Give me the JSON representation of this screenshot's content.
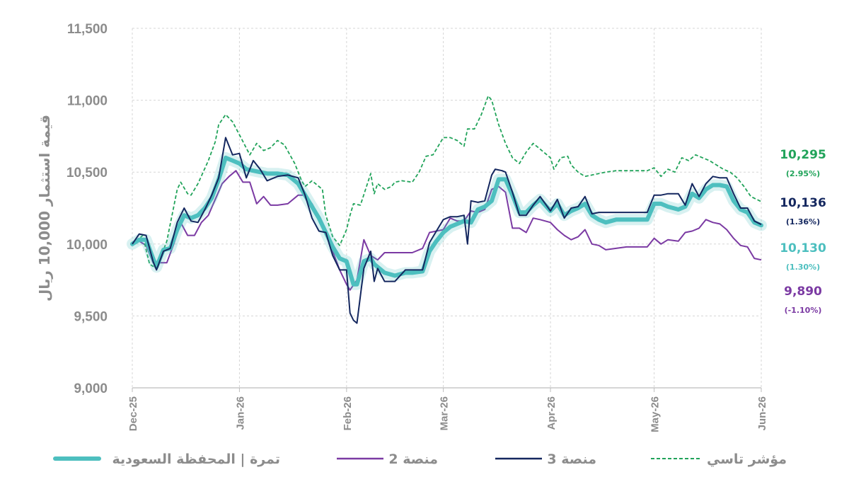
{
  "chart_data": {
    "type": "line",
    "title": "",
    "xlabel": "",
    "ylabel": "قيمة استثمار 10,000 ريال",
    "ylim": [
      9000,
      11500
    ],
    "yticks": [
      9000,
      9500,
      10000,
      10500,
      11000,
      11500
    ],
    "ytick_labels": [
      "9,000",
      "9,500",
      "10,000",
      "10,500",
      "11,000",
      "11,500"
    ],
    "xlim": [
      "2025-12-01",
      "2026-06-01"
    ],
    "xticks": [
      "2025-12-01",
      "2026-01-01",
      "2026-02-01",
      "2026-03-01",
      "2026-04-01",
      "2026-05-01",
      "2026-06-01"
    ],
    "xtick_labels": [
      "Dec-25",
      "Jan-26",
      "Feb-26",
      "Mar-26",
      "Apr-26",
      "May-26",
      "Jun-26"
    ],
    "grid": true,
    "legend_position": "bottom",
    "series": [
      {
        "name": "مؤشر تاسي",
        "color": "#21a35a",
        "style": "dashed",
        "end_value": "10,295",
        "end_change": "(2.95%)",
        "x": [
          "2025-12-01",
          "2025-12-04",
          "2025-12-06",
          "2025-12-08",
          "2025-12-11",
          "2025-12-14",
          "2025-12-15",
          "2025-12-17",
          "2025-12-18",
          "2025-12-20",
          "2025-12-23",
          "2025-12-25",
          "2025-12-26",
          "2025-12-28",
          "2025-12-30",
          "2026-01-01",
          "2026-01-04",
          "2026-01-06",
          "2026-01-08",
          "2026-01-10",
          "2026-01-12",
          "2026-01-14",
          "2026-01-17",
          "2026-01-19",
          "2026-01-20",
          "2026-01-22",
          "2026-01-25",
          "2026-01-26",
          "2026-01-28",
          "2026-01-30",
          "2026-02-01",
          "2026-02-02",
          "2026-02-03",
          "2026-02-05",
          "2026-02-08",
          "2026-02-09",
          "2026-02-10",
          "2026-02-12",
          "2026-02-14",
          "2026-02-15",
          "2026-02-17",
          "2026-02-20",
          "2026-02-22",
          "2026-02-24",
          "2026-02-26",
          "2026-03-01",
          "2026-03-03",
          "2026-03-05",
          "2026-03-07",
          "2026-03-08",
          "2026-03-10",
          "2026-03-12",
          "2026-03-14",
          "2026-03-15",
          "2026-03-17",
          "2026-03-19",
          "2026-03-21",
          "2026-03-23",
          "2026-03-25",
          "2026-03-27",
          "2026-03-29",
          "2026-04-01",
          "2026-04-02",
          "2026-04-04",
          "2026-04-06",
          "2026-04-07",
          "2026-04-09",
          "2026-04-11",
          "2026-04-13",
          "2026-04-15",
          "2026-04-17",
          "2026-04-20",
          "2026-04-23",
          "2026-04-26",
          "2026-04-29",
          "2026-05-01",
          "2026-05-03",
          "2026-05-05",
          "2026-05-07",
          "2026-05-09",
          "2026-05-11",
          "2026-05-13",
          "2026-05-15",
          "2026-05-17",
          "2026-05-19",
          "2026-05-21",
          "2026-05-23",
          "2026-05-25",
          "2026-05-27",
          "2026-05-29",
          "2026-06-01"
        ],
        "values": [
          9990,
          10060,
          9860,
          9830,
          10020,
          10380,
          10430,
          10350,
          10340,
          10420,
          10580,
          10710,
          10830,
          10900,
          10850,
          10760,
          10620,
          10700,
          10650,
          10670,
          10720,
          10690,
          10560,
          10440,
          10400,
          10440,
          10380,
          10200,
          10050,
          9990,
          10100,
          10200,
          10280,
          10270,
          10490,
          10350,
          10420,
          10380,
          10400,
          10430,
          10440,
          10430,
          10500,
          10610,
          10620,
          10740,
          10740,
          10720,
          10680,
          10800,
          10800,
          10900,
          11030,
          11000,
          10830,
          10700,
          10600,
          10560,
          10640,
          10700,
          10660,
          10600,
          10520,
          10600,
          10610,
          10550,
          10500,
          10470,
          10480,
          10490,
          10500,
          10510,
          10510,
          10510,
          10510,
          10530,
          10470,
          10520,
          10500,
          10600,
          10580,
          10620,
          10600,
          10580,
          10550,
          10520,
          10500,
          10460,
          10400,
          10330,
          10295
        ]
      },
      {
        "name": "منصة 3",
        "color": "#14275f",
        "style": "solid",
        "end_value": "10,136",
        "end_change": "(1.36%)",
        "x": [
          "2025-12-01",
          "2025-12-03",
          "2025-12-05",
          "2025-12-07",
          "2025-12-08",
          "2025-12-10",
          "2025-12-12",
          "2025-12-14",
          "2025-12-16",
          "2025-12-18",
          "2025-12-20",
          "2025-12-22",
          "2025-12-24",
          "2025-12-26",
          "2025-12-28",
          "2025-12-30",
          "2026-01-01",
          "2026-01-03",
          "2026-01-05",
          "2026-01-07",
          "2026-01-09",
          "2026-01-12",
          "2026-01-15",
          "2026-01-18",
          "2026-01-20",
          "2026-01-22",
          "2026-01-24",
          "2026-01-26",
          "2026-01-28",
          "2026-01-30",
          "2026-02-01",
          "2026-02-02",
          "2026-02-03",
          "2026-02-04",
          "2026-02-06",
          "2026-02-08",
          "2026-02-09",
          "2026-02-10",
          "2026-02-12",
          "2026-02-15",
          "2026-02-18",
          "2026-02-20",
          "2026-02-23",
          "2026-02-25",
          "2026-02-27",
          "2026-03-01",
          "2026-03-03",
          "2026-03-05",
          "2026-03-07",
          "2026-03-08",
          "2026-03-09",
          "2026-03-11",
          "2026-03-13",
          "2026-03-15",
          "2026-03-16",
          "2026-03-18",
          "2026-03-19",
          "2026-03-21",
          "2026-03-23",
          "2026-03-25",
          "2026-03-27",
          "2026-03-29",
          "2026-04-01",
          "2026-04-03",
          "2026-04-05",
          "2026-04-07",
          "2026-04-09",
          "2026-04-11",
          "2026-04-13",
          "2026-04-15",
          "2026-04-17",
          "2026-04-20",
          "2026-04-23",
          "2026-04-26",
          "2026-04-29",
          "2026-05-01",
          "2026-05-03",
          "2026-05-05",
          "2026-05-08",
          "2026-05-10",
          "2026-05-12",
          "2026-05-14",
          "2026-05-16",
          "2026-05-18",
          "2026-05-20",
          "2026-05-22",
          "2026-05-24",
          "2026-05-26",
          "2026-05-28",
          "2026-05-30",
          "2026-06-01"
        ],
        "values": [
          10000,
          10070,
          10060,
          9880,
          9820,
          9950,
          9970,
          10150,
          10250,
          10160,
          10150,
          10240,
          10340,
          10460,
          10740,
          10620,
          10630,
          10460,
          10580,
          10520,
          10440,
          10470,
          10480,
          10460,
          10340,
          10180,
          10090,
          10080,
          9920,
          9820,
          9820,
          9520,
          9470,
          9450,
          9830,
          9950,
          9740,
          9830,
          9740,
          9740,
          9820,
          9820,
          9820,
          10010,
          10090,
          10170,
          10190,
          10190,
          10200,
          10000,
          10300,
          10290,
          10300,
          10480,
          10520,
          10510,
          10500,
          10360,
          10200,
          10200,
          10270,
          10330,
          10230,
          10310,
          10180,
          10250,
          10260,
          10330,
          10210,
          10220,
          10220,
          10220,
          10220,
          10220,
          10220,
          10340,
          10340,
          10350,
          10350,
          10270,
          10420,
          10330,
          10420,
          10470,
          10460,
          10460,
          10350,
          10250,
          10250,
          10160,
          10136
        ]
      },
      {
        "name": "تمرة | المحفظة السعودية",
        "color": "#4dbfbf",
        "style": "thick",
        "end_value": "10,130",
        "end_change": "(1.30%)",
        "x": [
          "2025-12-01",
          "2025-12-03",
          "2025-12-05",
          "2025-12-07",
          "2025-12-08",
          "2025-12-10",
          "2025-12-12",
          "2025-12-14",
          "2025-12-16",
          "2025-12-18",
          "2025-12-20",
          "2025-12-22",
          "2025-12-24",
          "2025-12-26",
          "2025-12-28",
          "2025-12-30",
          "2026-01-01",
          "2026-01-03",
          "2026-01-05",
          "2026-01-07",
          "2026-01-09",
          "2026-01-12",
          "2026-01-15",
          "2026-01-18",
          "2026-01-20",
          "2026-01-22",
          "2026-01-24",
          "2026-01-26",
          "2026-01-28",
          "2026-01-30",
          "2026-02-01",
          "2026-02-02",
          "2026-02-03",
          "2026-02-04",
          "2026-02-06",
          "2026-02-08",
          "2026-02-09",
          "2026-02-10",
          "2026-02-12",
          "2026-02-15",
          "2026-02-18",
          "2026-02-20",
          "2026-02-23",
          "2026-02-25",
          "2026-02-27",
          "2026-03-01",
          "2026-03-03",
          "2026-03-05",
          "2026-03-07",
          "2026-03-09",
          "2026-03-11",
          "2026-03-13",
          "2026-03-15",
          "2026-03-17",
          "2026-03-19",
          "2026-03-21",
          "2026-03-23",
          "2026-03-25",
          "2026-03-27",
          "2026-03-29",
          "2026-04-01",
          "2026-04-03",
          "2026-04-05",
          "2026-04-07",
          "2026-04-09",
          "2026-04-11",
          "2026-04-13",
          "2026-04-15",
          "2026-04-17",
          "2026-04-20",
          "2026-04-23",
          "2026-04-26",
          "2026-04-29",
          "2026-05-01",
          "2026-05-03",
          "2026-05-05",
          "2026-05-08",
          "2026-05-10",
          "2026-05-12",
          "2026-05-14",
          "2026-05-16",
          "2026-05-18",
          "2026-05-20",
          "2026-05-22",
          "2026-05-24",
          "2026-05-26",
          "2026-05-28",
          "2026-05-30",
          "2026-06-01"
        ],
        "values": [
          10000,
          10030,
          10030,
          9900,
          9840,
          9960,
          9970,
          10100,
          10200,
          10180,
          10200,
          10250,
          10320,
          10450,
          10600,
          10580,
          10560,
          10520,
          10510,
          10500,
          10490,
          10490,
          10480,
          10420,
          10340,
          10260,
          10180,
          10080,
          9980,
          9900,
          9880,
          9800,
          9720,
          9720,
          9880,
          9900,
          9860,
          9840,
          9800,
          9780,
          9800,
          9800,
          9810,
          9950,
          10020,
          10080,
          10120,
          10140,
          10160,
          10150,
          10240,
          10260,
          10300,
          10450,
          10450,
          10340,
          10220,
          10220,
          10270,
          10310,
          10230,
          10280,
          10200,
          10230,
          10250,
          10280,
          10200,
          10170,
          10150,
          10170,
          10170,
          10170,
          10170,
          10280,
          10280,
          10260,
          10240,
          10260,
          10350,
          10320,
          10380,
          10410,
          10410,
          10400,
          10300,
          10240,
          10220,
          10150,
          10130
        ]
      },
      {
        "name": "منصة 2",
        "color": "#7b3aa3",
        "style": "solid",
        "end_value": "9,890",
        "end_change": "(-1.10%)",
        "x": [
          "2025-12-01",
          "2025-12-03",
          "2025-12-05",
          "2025-12-07",
          "2025-12-09",
          "2025-12-11",
          "2025-12-13",
          "2025-12-15",
          "2025-12-17",
          "2025-12-19",
          "2025-12-21",
          "2025-12-23",
          "2025-12-25",
          "2025-12-27",
          "2025-12-29",
          "2025-12-31",
          "2026-01-02",
          "2026-01-04",
          "2026-01-06",
          "2026-01-08",
          "2026-01-10",
          "2026-01-12",
          "2026-01-15",
          "2026-01-18",
          "2026-01-20",
          "2026-01-22",
          "2026-01-24",
          "2026-01-26",
          "2026-01-28",
          "2026-01-30",
          "2026-02-01",
          "2026-02-02",
          "2026-02-04",
          "2026-02-06",
          "2026-02-08",
          "2026-02-10",
          "2026-02-12",
          "2026-02-15",
          "2026-02-18",
          "2026-02-20",
          "2026-02-23",
          "2026-02-25",
          "2026-02-27",
          "2026-03-01",
          "2026-03-03",
          "2026-03-05",
          "2026-03-07",
          "2026-03-09",
          "2026-03-11",
          "2026-03-13",
          "2026-03-15",
          "2026-03-17",
          "2026-03-19",
          "2026-03-21",
          "2026-03-23",
          "2026-03-25",
          "2026-03-27",
          "2026-03-29",
          "2026-04-01",
          "2026-04-03",
          "2026-04-05",
          "2026-04-07",
          "2026-04-09",
          "2026-04-11",
          "2026-04-13",
          "2026-04-15",
          "2026-04-17",
          "2026-04-20",
          "2026-04-23",
          "2026-04-26",
          "2026-04-29",
          "2026-05-01",
          "2026-05-03",
          "2026-05-05",
          "2026-05-08",
          "2026-05-10",
          "2026-05-12",
          "2026-05-14",
          "2026-05-16",
          "2026-05-18",
          "2026-05-20",
          "2026-05-22",
          "2026-05-24",
          "2026-05-26",
          "2026-05-28",
          "2026-05-30",
          "2026-06-01"
        ],
        "values": [
          10000,
          10020,
          9990,
          9870,
          9870,
          9870,
          10000,
          10150,
          10060,
          10060,
          10150,
          10200,
          10310,
          10420,
          10470,
          10510,
          10430,
          10430,
          10280,
          10330,
          10270,
          10270,
          10280,
          10340,
          10340,
          10280,
          10190,
          10080,
          9950,
          9820,
          9720,
          9680,
          9750,
          10030,
          9920,
          9890,
          9940,
          9940,
          9940,
          9940,
          9970,
          10080,
          10090,
          10100,
          10180,
          10160,
          10160,
          10230,
          10220,
          10240,
          10380,
          10400,
          10360,
          10110,
          10110,
          10080,
          10180,
          10170,
          10150,
          10100,
          10060,
          10030,
          10050,
          10100,
          10000,
          9990,
          9960,
          9970,
          9980,
          9980,
          9980,
          10040,
          10000,
          10030,
          10020,
          10080,
          10090,
          10110,
          10170,
          10150,
          10140,
          10100,
          10040,
          9990,
          9980,
          9900,
          9890
        ]
      }
    ]
  }
}
